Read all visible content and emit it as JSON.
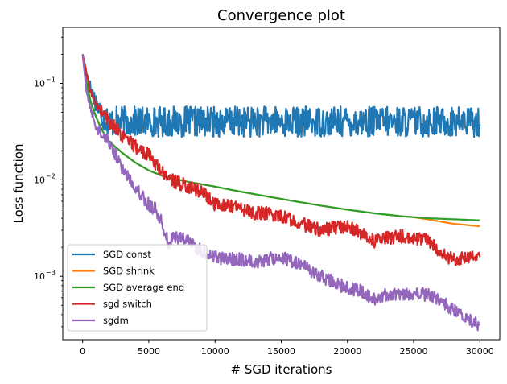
{
  "chart_data": {
    "type": "line",
    "title": "Convergence plot",
    "xlabel": "# SGD iterations",
    "ylabel": "Loss function",
    "xlim": [
      -1500,
      31500
    ],
    "ylim": [
      0.00022,
      0.38
    ],
    "yscale": "log",
    "grid": false,
    "legend_position": "lower-left",
    "x_ticks": [
      0,
      5000,
      10000,
      15000,
      20000,
      25000,
      30000
    ],
    "x_tick_labels": [
      "0",
      "5000",
      "10000",
      "15000",
      "20000",
      "25000",
      "30000"
    ],
    "y_ticks": [
      0.001,
      0.01,
      0.1
    ],
    "y_tick_labels": [
      "10",
      "10",
      "10"
    ],
    "y_tick_exponents": [
      "−3",
      "−2",
      "−1"
    ],
    "series": [
      {
        "name": "SGD const",
        "color": "#1f77b4",
        "noise_amp": 0.16,
        "x": [
          0,
          200,
          500,
          800,
          1200,
          1600,
          2000,
          2500,
          3000,
          4000,
          5000,
          6000,
          8000,
          10000,
          12000,
          14000,
          16000,
          18000,
          20000,
          22000,
          24000,
          26000,
          28000,
          30000
        ],
        "y": [
          0.2,
          0.15,
          0.1,
          0.075,
          0.055,
          0.045,
          0.04,
          0.04,
          0.04,
          0.04,
          0.04,
          0.04,
          0.04,
          0.04,
          0.04,
          0.04,
          0.04,
          0.04,
          0.04,
          0.04,
          0.04,
          0.04,
          0.04,
          0.04
        ]
      },
      {
        "name": "SGD shrink",
        "color": "#ff7f0e",
        "noise_amp": 0.0,
        "x": [
          0,
          300,
          600,
          1000,
          1500,
          2000,
          3000,
          4000,
          5000,
          6000,
          7000,
          8000,
          10000,
          12000,
          14000,
          16000,
          18000,
          20000,
          22000,
          24000,
          25000,
          26000,
          27000,
          28000,
          29000,
          30000
        ],
        "y": [
          0.2,
          0.1,
          0.065,
          0.045,
          0.032,
          0.025,
          0.019,
          0.015,
          0.0125,
          0.011,
          0.0102,
          0.0095,
          0.0085,
          0.0075,
          0.0067,
          0.006,
          0.0054,
          0.0049,
          0.0045,
          0.0042,
          0.0041,
          0.0039,
          0.0037,
          0.0035,
          0.0034,
          0.0033
        ]
      },
      {
        "name": "SGD average end",
        "color": "#2ca02c",
        "noise_amp": 0.0,
        "x": [
          0,
          300,
          600,
          1000,
          1500,
          2000,
          3000,
          4000,
          5000,
          6000,
          7000,
          8000,
          10000,
          12000,
          14000,
          16000,
          18000,
          20000,
          22000,
          24000,
          26000,
          28000,
          30000
        ],
        "y": [
          0.2,
          0.1,
          0.065,
          0.045,
          0.032,
          0.025,
          0.019,
          0.015,
          0.0125,
          0.011,
          0.0102,
          0.0095,
          0.0085,
          0.0075,
          0.0067,
          0.006,
          0.0054,
          0.0049,
          0.0045,
          0.0042,
          0.004,
          0.0039,
          0.0038
        ]
      },
      {
        "name": "sgd switch",
        "color": "#d62728",
        "noise_amp": 0.07,
        "x": [
          0,
          500,
          1000,
          1500,
          2000,
          2500,
          3000,
          4000,
          5000,
          6000,
          7000,
          8000,
          9000,
          10000,
          11000,
          12000,
          13000,
          14000,
          15000,
          16000,
          17000,
          18000,
          19000,
          20000,
          21000,
          22000,
          23000,
          24000,
          25000,
          26000,
          27000,
          28000,
          29000,
          30000
        ],
        "y": [
          0.2,
          0.09,
          0.06,
          0.05,
          0.04,
          0.035,
          0.028,
          0.022,
          0.018,
          0.012,
          0.0095,
          0.0085,
          0.0075,
          0.0055,
          0.0055,
          0.005,
          0.0045,
          0.0045,
          0.0042,
          0.0038,
          0.0033,
          0.003,
          0.0032,
          0.0033,
          0.0028,
          0.0023,
          0.0025,
          0.0026,
          0.0024,
          0.0025,
          0.0017,
          0.0015,
          0.0016,
          0.0017
        ]
      },
      {
        "name": "sgdm",
        "color": "#9467bd",
        "noise_amp": 0.07,
        "x": [
          0,
          300,
          600,
          1000,
          1500,
          2000,
          3000,
          4000,
          5000,
          5500,
          6000,
          6500,
          7000,
          8000,
          9000,
          10000,
          11000,
          12000,
          13000,
          14000,
          15000,
          16000,
          17000,
          18000,
          19000,
          20000,
          21000,
          22000,
          23000,
          24000,
          25000,
          26000,
          27000,
          28000,
          29000,
          30000
        ],
        "y": [
          0.2,
          0.08,
          0.055,
          0.035,
          0.03,
          0.025,
          0.013,
          0.0085,
          0.0055,
          0.005,
          0.0035,
          0.0022,
          0.0026,
          0.0023,
          0.0018,
          0.0016,
          0.0015,
          0.0015,
          0.0014,
          0.0015,
          0.0016,
          0.0014,
          0.0012,
          0.001,
          0.00085,
          0.00075,
          0.0007,
          0.00058,
          0.00065,
          0.00062,
          0.00065,
          0.00065,
          0.00056,
          0.00045,
          0.00037,
          0.00031
        ]
      }
    ]
  }
}
